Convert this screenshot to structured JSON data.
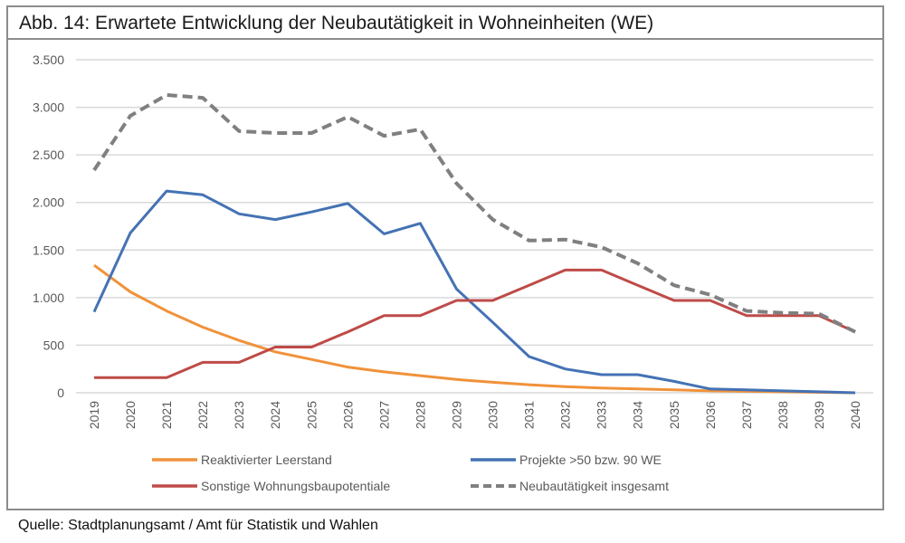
{
  "figure": {
    "title": "Abb. 14: Erwartete Entwicklung der Neubautätigkeit in Wohneinheiten (WE)",
    "source": "Quelle: Stadtplanungsamt / Amt für Statistik und Wahlen"
  },
  "chart_data": {
    "type": "line",
    "title": "Abb. 14: Erwartete Entwicklung der Neubautätigkeit in Wohneinheiten (WE)",
    "xlabel": "",
    "ylabel": "",
    "ylim": [
      0,
      3500
    ],
    "yticks": [
      0,
      500,
      1000,
      1500,
      2000,
      2500,
      3000,
      3500
    ],
    "ytick_labels": [
      "0",
      "500",
      "1.000",
      "1.500",
      "2.000",
      "2.500",
      "3.000",
      "3.500"
    ],
    "grid": true,
    "legend_position": "bottom",
    "categories": [
      "2019",
      "2020",
      "2021",
      "2022",
      "2023",
      "2024",
      "2025",
      "2026",
      "2027",
      "2028",
      "2029",
      "2030",
      "2031",
      "2032",
      "2033",
      "2034",
      "2035",
      "2036",
      "2037",
      "2038",
      "2039",
      "2040"
    ],
    "series": [
      {
        "name": "Reaktivierter Leerstand",
        "color": "#f0923a",
        "dash": "solid",
        "values": [
          1340,
          1060,
          860,
          690,
          550,
          430,
          350,
          270,
          220,
          180,
          140,
          110,
          85,
          65,
          50,
          40,
          30,
          20,
          15,
          10,
          5,
          0
        ]
      },
      {
        "name": "Projekte >50 bzw. 90 WE",
        "color": "#4472b4",
        "dash": "solid",
        "values": [
          850,
          1680,
          2120,
          2080,
          1880,
          1820,
          1900,
          1990,
          1670,
          1780,
          1090,
          740,
          380,
          250,
          190,
          190,
          120,
          40,
          30,
          20,
          10,
          0
        ]
      },
      {
        "name": "Sonstige Wohnungsbaupotentiale",
        "color": "#be4b48",
        "dash": "solid",
        "values": [
          160,
          160,
          160,
          320,
          320,
          480,
          480,
          640,
          810,
          810,
          970,
          970,
          1130,
          1290,
          1290,
          1130,
          970,
          970,
          810,
          810,
          810,
          640
        ]
      },
      {
        "name": "Neubautätigkeit insgesamt",
        "color": "#808080",
        "dash": "dashed",
        "values": [
          2340,
          2910,
          3130,
          3100,
          2750,
          2730,
          2730,
          2900,
          2700,
          2770,
          2200,
          1820,
          1600,
          1610,
          1530,
          1360,
          1130,
          1030,
          860,
          840,
          830,
          640
        ]
      }
    ],
    "legend": [
      {
        "label": "Reaktivierter Leerstand",
        "series": 0
      },
      {
        "label": "Projekte >50 bzw. 90 WE",
        "series": 1
      },
      {
        "label": "Sonstige Wohnungsbaupotentiale",
        "series": 2
      },
      {
        "label": "Neubautätigkeit insgesamt",
        "series": 3
      }
    ],
    "gridline_color": "#d9d9d9"
  }
}
